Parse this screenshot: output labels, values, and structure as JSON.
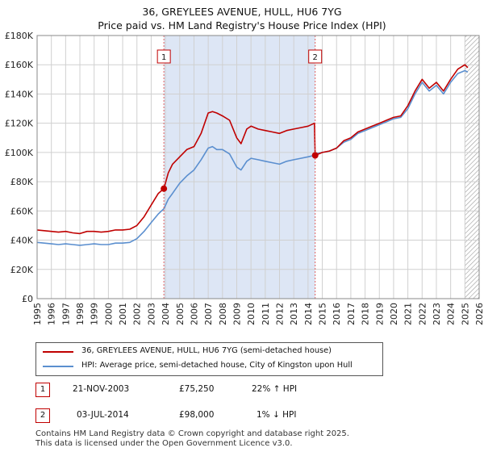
{
  "page": {
    "title_line1": "36, GREYLEES AVENUE, HULL, HU6 7YG",
    "title_line2": "Price paid vs. HM Land Registry's House Price Index (HPI)"
  },
  "legend": {
    "red_label": "36, GREYLEES AVENUE, HULL, HU6 7YG (semi-detached house)",
    "blue_label": "HPI: Average price, semi-detached house, City of Kingston upon Hull"
  },
  "transactions": [
    {
      "num": "1",
      "date": "21-NOV-2003",
      "price": "£75,250",
      "hpi": "22% ↑ HPI"
    },
    {
      "num": "2",
      "date": "03-JUL-2014",
      "price": "£98,000",
      "hpi": "1% ↓ HPI"
    }
  ],
  "footer": {
    "line1": "Contains HM Land Registry data © Crown copyright and database right 2025.",
    "line2": "This data is licensed under the Open Government Licence v3.0."
  },
  "colors": {
    "property": "#c00000",
    "hpi": "#5b8fcf",
    "shade": "#dde6f5",
    "grid": "#d0d0d0",
    "marker_line": "#e06060"
  },
  "chart_data": {
    "type": "line",
    "title": "Price paid vs. HM Land Registry's House Price Index (HPI)",
    "xlabel": "",
    "ylabel": "",
    "xlim": [
      1995,
      2026
    ],
    "ylim": [
      0,
      180000
    ],
    "grid": true,
    "legend_position": "bottom",
    "x_ticks": [
      1995,
      1996,
      1997,
      1998,
      1999,
      2000,
      2001,
      2002,
      2003,
      2004,
      2005,
      2006,
      2007,
      2008,
      2009,
      2010,
      2011,
      2012,
      2013,
      2014,
      2015,
      2016,
      2017,
      2018,
      2019,
      2020,
      2021,
      2022,
      2023,
      2024,
      2025,
      2026
    ],
    "y_ticks": [
      {
        "value": 0,
        "label": "£0"
      },
      {
        "value": 20000,
        "label": "£20K"
      },
      {
        "value": 40000,
        "label": "£40K"
      },
      {
        "value": 60000,
        "label": "£60K"
      },
      {
        "value": 80000,
        "label": "£80K"
      },
      {
        "value": 100000,
        "label": "£100K"
      },
      {
        "value": 120000,
        "label": "£120K"
      },
      {
        "value": 140000,
        "label": "£140K"
      },
      {
        "value": 160000,
        "label": "£160K"
      },
      {
        "value": 180000,
        "label": "£180K"
      }
    ],
    "shaded_span": [
      2003.89,
      2014.5
    ],
    "hatched_from": 2025.0,
    "annotations": [
      {
        "label": "1",
        "x": 2003.89,
        "y": 75250
      },
      {
        "label": "2",
        "x": 2014.5,
        "y": 98000
      }
    ],
    "series": [
      {
        "name": "36, GREYLEES AVENUE, HULL, HU6 7YG (semi-detached house)",
        "color": "#c00000",
        "x": [
          1995.0,
          1995.5,
          1996.0,
          1996.5,
          1997.0,
          1997.5,
          1998.0,
          1998.5,
          1999.0,
          1999.5,
          2000.0,
          2000.5,
          2001.0,
          2001.5,
          2002.0,
          2002.5,
          2003.0,
          2003.5,
          2003.89,
          2004.2,
          2004.5,
          2005.0,
          2005.5,
          2006.0,
          2006.5,
          2007.0,
          2007.3,
          2007.6,
          2008.0,
          2008.5,
          2009.0,
          2009.3,
          2009.7,
          2010.0,
          2010.5,
          2011.0,
          2011.5,
          2012.0,
          2012.5,
          2013.0,
          2013.5,
          2014.0,
          2014.45,
          2014.5,
          2015.0,
          2015.5,
          2016.0,
          2016.5,
          2017.0,
          2017.5,
          2018.0,
          2018.5,
          2019.0,
          2019.5,
          2020.0,
          2020.5,
          2021.0,
          2021.5,
          2022.0,
          2022.5,
          2023.0,
          2023.5,
          2024.0,
          2024.5,
          2025.0,
          2025.2
        ],
        "values": [
          47000,
          46500,
          46000,
          45500,
          46000,
          45000,
          44500,
          46000,
          46000,
          45500,
          46000,
          47000,
          47000,
          47500,
          50000,
          56000,
          64000,
          72000,
          75250,
          86000,
          92000,
          97000,
          102000,
          104000,
          113000,
          127000,
          128000,
          127000,
          125000,
          122000,
          110000,
          106000,
          116000,
          118000,
          116000,
          115000,
          114000,
          113000,
          115000,
          116000,
          117000,
          118000,
          120000,
          98000,
          100000,
          101000,
          103000,
          108000,
          110000,
          114000,
          116000,
          118000,
          120000,
          122000,
          124000,
          125000,
          132000,
          142000,
          150000,
          144000,
          148000,
          142000,
          150000,
          157000,
          160000,
          158000
        ]
      },
      {
        "name": "HPI: Average price, semi-detached house, City of Kingston upon Hull",
        "color": "#5b8fcf",
        "x": [
          1995.0,
          1995.5,
          1996.0,
          1996.5,
          1997.0,
          1997.5,
          1998.0,
          1998.5,
          1999.0,
          1999.5,
          2000.0,
          2000.5,
          2001.0,
          2001.5,
          2002.0,
          2002.5,
          2003.0,
          2003.5,
          2003.89,
          2004.2,
          2004.5,
          2005.0,
          2005.5,
          2006.0,
          2006.5,
          2007.0,
          2007.3,
          2007.6,
          2008.0,
          2008.5,
          2009.0,
          2009.3,
          2009.7,
          2010.0,
          2010.5,
          2011.0,
          2011.5,
          2012.0,
          2012.5,
          2013.0,
          2013.5,
          2014.0,
          2014.45,
          2014.5,
          2015.0,
          2015.5,
          2016.0,
          2016.5,
          2017.0,
          2017.5,
          2018.0,
          2018.5,
          2019.0,
          2019.5,
          2020.0,
          2020.5,
          2021.0,
          2021.5,
          2022.0,
          2022.5,
          2023.0,
          2023.5,
          2024.0,
          2024.5,
          2025.0,
          2025.2
        ],
        "values": [
          38500,
          38000,
          37500,
          37000,
          37500,
          37000,
          36500,
          37000,
          37500,
          37000,
          37000,
          38000,
          38000,
          38500,
          41000,
          46000,
          52000,
          58000,
          61500,
          68000,
          72000,
          79000,
          84000,
          88000,
          95000,
          103000,
          104000,
          102000,
          102000,
          99000,
          90000,
          88000,
          94000,
          96000,
          95000,
          94000,
          93000,
          92000,
          94000,
          95000,
          96000,
          97000,
          98000,
          99000,
          100000,
          101000,
          103000,
          107000,
          109000,
          113000,
          115000,
          117000,
          119000,
          121000,
          123000,
          124000,
          130000,
          140000,
          148000,
          142000,
          146000,
          140000,
          148000,
          154000,
          156000,
          155000
        ]
      }
    ]
  }
}
